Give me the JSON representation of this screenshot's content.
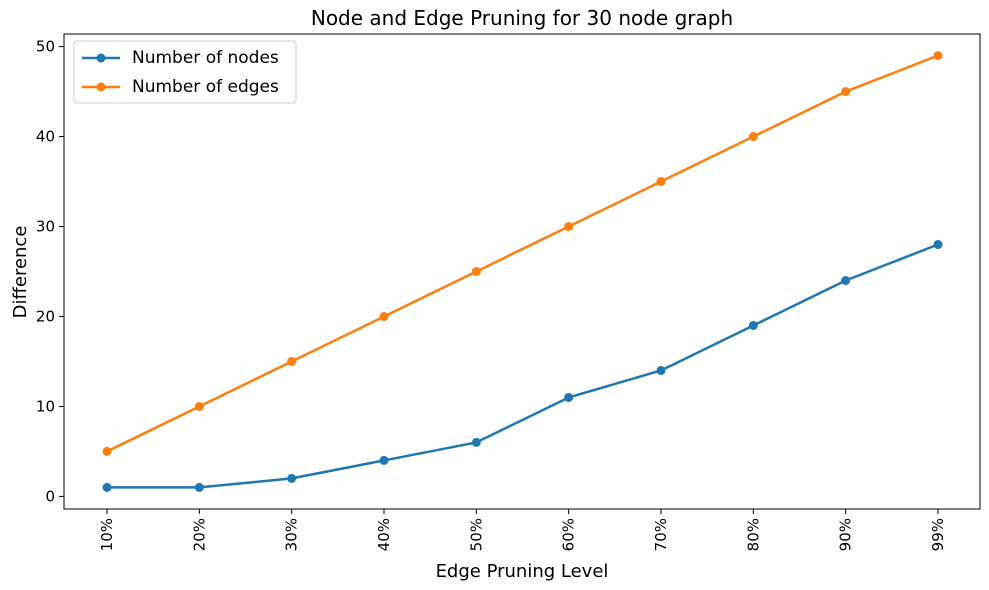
{
  "chart_data": {
    "type": "line",
    "title": "Node and Edge Pruning for 30 node graph",
    "xlabel": "Edge Pruning Level",
    "ylabel": "Difference",
    "categories": [
      "10%",
      "20%",
      "30%",
      "40%",
      "50%",
      "60%",
      "70%",
      "80%",
      "90%",
      "99%"
    ],
    "ylim": [
      -1.4,
      51.4
    ],
    "yticks": [
      0,
      10,
      20,
      30,
      40,
      50
    ],
    "grid": false,
    "legend_position": "top-left",
    "series": [
      {
        "name": "Number of nodes",
        "color": "#1f77b4",
        "values": [
          1,
          1,
          2,
          4,
          6,
          11,
          14,
          19,
          24,
          28
        ]
      },
      {
        "name": "Number of edges",
        "color": "#ff7f0e",
        "values": [
          5,
          10,
          15,
          20,
          25,
          30,
          35,
          40,
          45,
          49
        ]
      }
    ]
  }
}
